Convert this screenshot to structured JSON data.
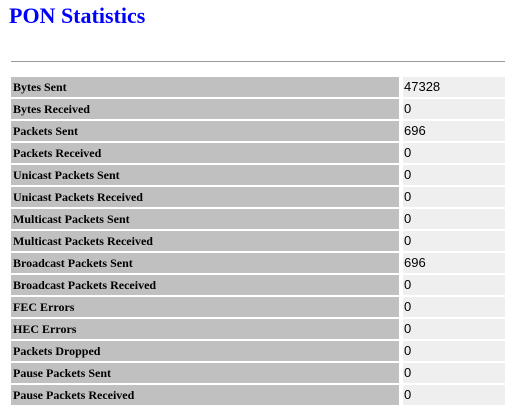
{
  "page": {
    "title": "PON Statistics",
    "title_color": "#0000ff",
    "label_bg": "#c0c0c0",
    "value_bg": "#efefef"
  },
  "stats": [
    {
      "label": "Bytes Sent",
      "value": "47328"
    },
    {
      "label": "Bytes Received",
      "value": "0"
    },
    {
      "label": "Packets Sent",
      "value": "696"
    },
    {
      "label": "Packets Received",
      "value": "0"
    },
    {
      "label": "Unicast Packets Sent",
      "value": "0"
    },
    {
      "label": "Unicast Packets Received",
      "value": "0"
    },
    {
      "label": "Multicast Packets Sent",
      "value": "0"
    },
    {
      "label": "Multicast Packets Received",
      "value": "0"
    },
    {
      "label": "Broadcast Packets Sent",
      "value": "696"
    },
    {
      "label": "Broadcast Packets Received",
      "value": "0"
    },
    {
      "label": "FEC Errors",
      "value": "0"
    },
    {
      "label": "HEC Errors",
      "value": "0"
    },
    {
      "label": "Packets Dropped",
      "value": "0"
    },
    {
      "label": "Pause Packets Sent",
      "value": "0"
    },
    {
      "label": "Pause Packets Received",
      "value": "0"
    }
  ]
}
